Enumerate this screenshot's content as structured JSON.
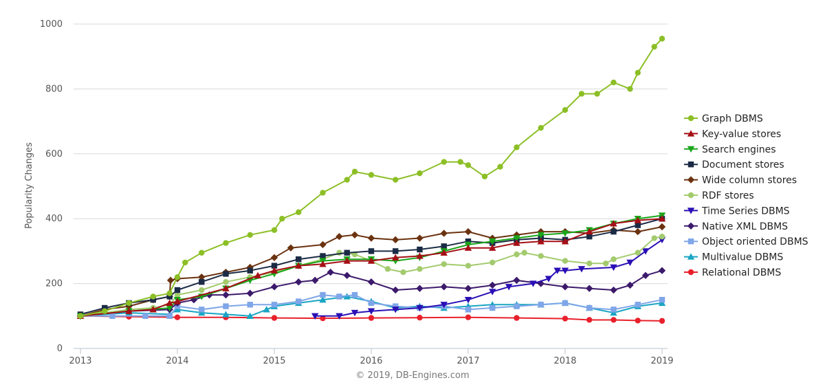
{
  "chart_data": {
    "type": "line",
    "title": "",
    "xlabel": "",
    "ylabel": "Popularity Changes",
    "credit": "© 2019, DB-Engines.com",
    "x_ticks": [
      "2013",
      "2014",
      "2015",
      "2016",
      "2017",
      "2018",
      "2019"
    ],
    "y_ticks": [
      "0",
      "200",
      "400",
      "600",
      "800",
      "1000"
    ],
    "xlim": [
      2013,
      2019
    ],
    "ylim": [
      0,
      1000
    ],
    "legend_position": "right",
    "series": [
      {
        "name": "Graph DBMS",
        "color": "#8cbf26",
        "marker": "circle",
        "points": [
          [
            2013,
            100
          ],
          [
            2013.25,
            115
          ],
          [
            2013.5,
            140
          ],
          [
            2013.75,
            160
          ],
          [
            2013.92,
            170
          ],
          [
            2014,
            220
          ],
          [
            2014.08,
            265
          ],
          [
            2014.25,
            295
          ],
          [
            2014.5,
            325
          ],
          [
            2014.75,
            350
          ],
          [
            2015,
            365
          ],
          [
            2015.08,
            400
          ],
          [
            2015.25,
            420
          ],
          [
            2015.5,
            480
          ],
          [
            2015.75,
            520
          ],
          [
            2015.83,
            545
          ],
          [
            2016,
            535
          ],
          [
            2016.25,
            520
          ],
          [
            2016.5,
            540
          ],
          [
            2016.75,
            575
          ],
          [
            2016.92,
            575
          ],
          [
            2017,
            565
          ],
          [
            2017.17,
            530
          ],
          [
            2017.33,
            560
          ],
          [
            2017.5,
            620
          ],
          [
            2017.75,
            680
          ],
          [
            2018,
            735
          ],
          [
            2018.17,
            785
          ],
          [
            2018.33,
            785
          ],
          [
            2018.5,
            820
          ],
          [
            2018.67,
            800
          ],
          [
            2018.75,
            850
          ],
          [
            2018.92,
            930
          ],
          [
            2019,
            955
          ]
        ]
      },
      {
        "name": "Key-value stores",
        "color": "#a50f15",
        "marker": "triangle-up",
        "points": [
          [
            2013,
            100
          ],
          [
            2013.5,
            115
          ],
          [
            2013.75,
            120
          ],
          [
            2013.92,
            140
          ],
          [
            2014,
            145
          ],
          [
            2014.5,
            185
          ],
          [
            2014.83,
            225
          ],
          [
            2015,
            240
          ],
          [
            2015.25,
            255
          ],
          [
            2015.5,
            260
          ],
          [
            2015.75,
            270
          ],
          [
            2016,
            270
          ],
          [
            2016.25,
            280
          ],
          [
            2016.5,
            285
          ],
          [
            2016.75,
            295
          ],
          [
            2017,
            310
          ],
          [
            2017.25,
            310
          ],
          [
            2017.5,
            325
          ],
          [
            2017.75,
            330
          ],
          [
            2018,
            330
          ],
          [
            2018.25,
            360
          ],
          [
            2018.5,
            385
          ],
          [
            2018.75,
            395
          ],
          [
            2019,
            400
          ]
        ]
      },
      {
        "name": "Search engines",
        "color": "#1aa61a",
        "marker": "triangle-down",
        "points": [
          [
            2013,
            100
          ],
          [
            2013.5,
            115
          ],
          [
            2013.92,
            125
          ],
          [
            2014,
            150
          ],
          [
            2014.25,
            160
          ],
          [
            2014.5,
            185
          ],
          [
            2014.75,
            210
          ],
          [
            2015,
            230
          ],
          [
            2015.25,
            255
          ],
          [
            2015.5,
            270
          ],
          [
            2015.75,
            275
          ],
          [
            2016,
            275
          ],
          [
            2016.25,
            270
          ],
          [
            2016.5,
            280
          ],
          [
            2016.75,
            300
          ],
          [
            2017,
            320
          ],
          [
            2017.25,
            330
          ],
          [
            2017.5,
            340
          ],
          [
            2017.75,
            350
          ],
          [
            2018,
            355
          ],
          [
            2018.25,
            365
          ],
          [
            2018.5,
            385
          ],
          [
            2018.75,
            400
          ],
          [
            2019,
            410
          ]
        ]
      },
      {
        "name": "Document stores",
        "color": "#1b2b45",
        "marker": "square",
        "points": [
          [
            2013,
            105
          ],
          [
            2013.25,
            125
          ],
          [
            2013.5,
            140
          ],
          [
            2013.75,
            150
          ],
          [
            2013.92,
            160
          ],
          [
            2014,
            180
          ],
          [
            2014.25,
            205
          ],
          [
            2014.5,
            230
          ],
          [
            2014.75,
            240
          ],
          [
            2015,
            255
          ],
          [
            2015.25,
            275
          ],
          [
            2015.5,
            285
          ],
          [
            2015.75,
            295
          ],
          [
            2016,
            300
          ],
          [
            2016.25,
            300
          ],
          [
            2016.5,
            305
          ],
          [
            2016.75,
            315
          ],
          [
            2017,
            330
          ],
          [
            2017.25,
            325
          ],
          [
            2017.5,
            335
          ],
          [
            2017.75,
            340
          ],
          [
            2018,
            335
          ],
          [
            2018.25,
            345
          ],
          [
            2018.5,
            360
          ],
          [
            2018.75,
            380
          ],
          [
            2019,
            400
          ]
        ]
      },
      {
        "name": "Wide column stores",
        "color": "#6b3210",
        "marker": "diamond",
        "points": [
          [
            2013,
            100
          ],
          [
            2013.25,
            120
          ],
          [
            2013.5,
            130
          ],
          [
            2013.75,
            150
          ],
          [
            2013.92,
            160
          ],
          [
            2013.93,
            210
          ],
          [
            2014,
            215
          ],
          [
            2014.25,
            220
          ],
          [
            2014.5,
            235
          ],
          [
            2014.75,
            250
          ],
          [
            2015,
            280
          ],
          [
            2015.17,
            310
          ],
          [
            2015.5,
            320
          ],
          [
            2015.67,
            345
          ],
          [
            2015.83,
            350
          ],
          [
            2016,
            340
          ],
          [
            2016.25,
            335
          ],
          [
            2016.5,
            340
          ],
          [
            2016.75,
            355
          ],
          [
            2017,
            360
          ],
          [
            2017.25,
            340
          ],
          [
            2017.5,
            350
          ],
          [
            2017.75,
            360
          ],
          [
            2018,
            360
          ],
          [
            2018.25,
            355
          ],
          [
            2018.5,
            365
          ],
          [
            2018.75,
            360
          ],
          [
            2019,
            375
          ]
        ]
      },
      {
        "name": "RDF stores",
        "color": "#a3cb6e",
        "marker": "circle",
        "points": [
          [
            2013,
            100
          ],
          [
            2013.5,
            120
          ],
          [
            2013.75,
            125
          ],
          [
            2013.92,
            135
          ],
          [
            2014,
            165
          ],
          [
            2014.25,
            180
          ],
          [
            2014.5,
            205
          ],
          [
            2014.75,
            220
          ],
          [
            2015,
            235
          ],
          [
            2015.25,
            255
          ],
          [
            2015.5,
            275
          ],
          [
            2015.67,
            295
          ],
          [
            2015.83,
            290
          ],
          [
            2016,
            270
          ],
          [
            2016.17,
            245
          ],
          [
            2016.33,
            235
          ],
          [
            2016.5,
            245
          ],
          [
            2016.75,
            260
          ],
          [
            2017,
            255
          ],
          [
            2017.25,
            265
          ],
          [
            2017.5,
            290
          ],
          [
            2017.58,
            295
          ],
          [
            2017.75,
            285
          ],
          [
            2018,
            270
          ],
          [
            2018.25,
            262
          ],
          [
            2018.42,
            262
          ],
          [
            2018.5,
            275
          ],
          [
            2018.75,
            295
          ],
          [
            2018.92,
            340
          ],
          [
            2019,
            345
          ]
        ]
      },
      {
        "name": "Time Series DBMS",
        "color": "#2b0fb5",
        "marker": "triangle-down",
        "points": [
          [
            2015.42,
            100
          ],
          [
            2015.67,
            100
          ],
          [
            2015.83,
            110
          ],
          [
            2016,
            115
          ],
          [
            2016.25,
            120
          ],
          [
            2016.5,
            125
          ],
          [
            2016.75,
            135
          ],
          [
            2017,
            150
          ],
          [
            2017.25,
            175
          ],
          [
            2017.42,
            190
          ],
          [
            2017.67,
            200
          ],
          [
            2017.83,
            215
          ],
          [
            2017.92,
            240
          ],
          [
            2018,
            240
          ],
          [
            2018.17,
            245
          ],
          [
            2018.5,
            250
          ],
          [
            2018.67,
            265
          ],
          [
            2018.83,
            300
          ],
          [
            2019,
            335
          ]
        ]
      },
      {
        "name": "Native XML DBMS",
        "color": "#3c1a6b",
        "marker": "diamond",
        "points": [
          [
            2013,
            100
          ],
          [
            2013.5,
            115
          ],
          [
            2013.92,
            120
          ],
          [
            2014,
            140
          ],
          [
            2014.17,
            150
          ],
          [
            2014.33,
            165
          ],
          [
            2014.5,
            165
          ],
          [
            2014.75,
            170
          ],
          [
            2015,
            190
          ],
          [
            2015.25,
            205
          ],
          [
            2015.42,
            210
          ],
          [
            2015.58,
            235
          ],
          [
            2015.75,
            225
          ],
          [
            2016,
            205
          ],
          [
            2016.25,
            180
          ],
          [
            2016.5,
            185
          ],
          [
            2016.75,
            190
          ],
          [
            2017,
            185
          ],
          [
            2017.25,
            195
          ],
          [
            2017.5,
            210
          ],
          [
            2017.75,
            200
          ],
          [
            2018,
            190
          ],
          [
            2018.25,
            185
          ],
          [
            2018.5,
            180
          ],
          [
            2018.67,
            195
          ],
          [
            2018.83,
            225
          ],
          [
            2019,
            240
          ]
        ]
      },
      {
        "name": "Object oriented DBMS",
        "color": "#7fa6e8",
        "marker": "square",
        "points": [
          [
            2013,
            100
          ],
          [
            2013.33,
            100
          ],
          [
            2013.67,
            100
          ],
          [
            2013.92,
            100
          ],
          [
            2014,
            130
          ],
          [
            2014.25,
            120
          ],
          [
            2014.5,
            130
          ],
          [
            2014.75,
            135
          ],
          [
            2015,
            135
          ],
          [
            2015.25,
            145
          ],
          [
            2015.5,
            165
          ],
          [
            2015.67,
            160
          ],
          [
            2015.83,
            165
          ],
          [
            2016,
            140
          ],
          [
            2016.25,
            130
          ],
          [
            2016.5,
            125
          ],
          [
            2016.75,
            130
          ],
          [
            2017,
            120
          ],
          [
            2017.25,
            125
          ],
          [
            2017.5,
            130
          ],
          [
            2017.75,
            135
          ],
          [
            2018,
            140
          ],
          [
            2018.25,
            125
          ],
          [
            2018.5,
            120
          ],
          [
            2018.75,
            135
          ],
          [
            2019,
            150
          ]
        ]
      },
      {
        "name": "Multivalue DBMS",
        "color": "#19a5c4",
        "marker": "triangle-up",
        "points": [
          [
            2013,
            100
          ],
          [
            2013.5,
            110
          ],
          [
            2013.92,
            105
          ],
          [
            2014,
            120
          ],
          [
            2014.25,
            110
          ],
          [
            2014.5,
            105
          ],
          [
            2014.75,
            100
          ],
          [
            2014.92,
            120
          ],
          [
            2015,
            130
          ],
          [
            2015.25,
            140
          ],
          [
            2015.5,
            150
          ],
          [
            2015.75,
            160
          ],
          [
            2016,
            145
          ],
          [
            2016.25,
            125
          ],
          [
            2016.5,
            130
          ],
          [
            2016.75,
            125
          ],
          [
            2017,
            130
          ],
          [
            2017.25,
            135
          ],
          [
            2017.5,
            135
          ],
          [
            2017.75,
            135
          ],
          [
            2018,
            140
          ],
          [
            2018.25,
            125
          ],
          [
            2018.5,
            110
          ],
          [
            2018.75,
            130
          ],
          [
            2019,
            140
          ]
        ]
      },
      {
        "name": "Relational DBMS",
        "color": "#e8202b",
        "marker": "circle",
        "points": [
          [
            2013,
            100
          ],
          [
            2013.5,
            98
          ],
          [
            2014,
            96
          ],
          [
            2014.5,
            96
          ],
          [
            2015,
            94
          ],
          [
            2015.5,
            93
          ],
          [
            2016,
            94
          ],
          [
            2016.5,
            95
          ],
          [
            2017,
            96
          ],
          [
            2017.5,
            94
          ],
          [
            2018,
            92
          ],
          [
            2018.25,
            88
          ],
          [
            2018.5,
            88
          ],
          [
            2018.75,
            86
          ],
          [
            2019,
            85
          ]
        ]
      }
    ]
  }
}
